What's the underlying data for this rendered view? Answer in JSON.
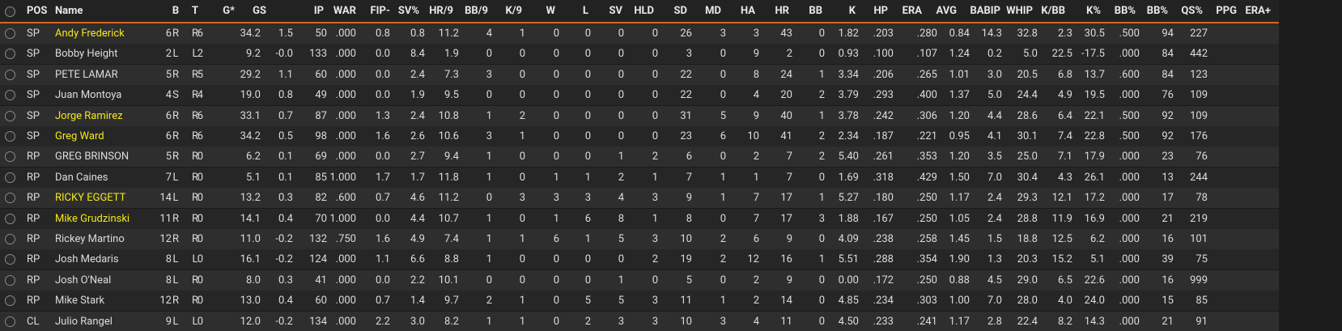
{
  "table": {
    "headers": [
      "POS",
      "Name",
      "B",
      "T",
      "G*",
      "GS",
      "IP",
      "WAR",
      "FIP-",
      "SV%",
      "HR/9",
      "BB/9",
      "K/9",
      "W",
      "L",
      "SV",
      "HLD",
      "SD",
      "MD",
      "HA",
      "HR",
      "BB",
      "K",
      "HP",
      "ERA",
      "AVG",
      "BABIP",
      "WHIP",
      "K/BB",
      "K%",
      "BB%",
      "BB%",
      "QS%",
      "PPG",
      "ERA+"
    ],
    "highlighted_rows": [
      0,
      4,
      5,
      8,
      9
    ],
    "rows": [
      [
        "SP",
        "Andy Frederick",
        "R",
        "R",
        "6",
        "6",
        "34.2",
        "1.5",
        "50",
        ".000",
        "0.8",
        "0.8",
        "11.2",
        "4",
        "1",
        "0",
        "0",
        "0",
        "0",
        "26",
        "3",
        "3",
        "43",
        "0",
        "1.82",
        ".203",
        ".280",
        "0.84",
        "14.3",
        "32.8",
        "2.3",
        "30.5",
        ".500",
        "94",
        "227"
      ],
      [
        "SP",
        "Bobby Height",
        "L",
        "L",
        "2",
        "2",
        "9.2",
        "-0.0",
        "133",
        ".000",
        "0.0",
        "8.4",
        "1.9",
        "0",
        "0",
        "0",
        "0",
        "0",
        "0",
        "3",
        "0",
        "9",
        "2",
        "0",
        "0.93",
        ".100",
        ".107",
        "1.24",
        "0.2",
        "5.0",
        "22.5",
        "-17.5",
        ".000",
        "84",
        "442"
      ],
      [
        "SP",
        "PETE LAMAR",
        "R",
        "R",
        "5",
        "5",
        "29.2",
        "1.1",
        "60",
        ".000",
        "0.0",
        "2.4",
        "7.3",
        "3",
        "0",
        "0",
        "0",
        "0",
        "0",
        "22",
        "0",
        "8",
        "24",
        "1",
        "3.34",
        ".206",
        ".265",
        "1.01",
        "3.0",
        "20.5",
        "6.8",
        "13.7",
        ".600",
        "84",
        "123"
      ],
      [
        "SP",
        "Juan Montoya",
        "S",
        "R",
        "4",
        "4",
        "19.0",
        "0.8",
        "49",
        ".000",
        "0.0",
        "1.9",
        "9.5",
        "0",
        "0",
        "0",
        "0",
        "0",
        "0",
        "22",
        "0",
        "4",
        "20",
        "2",
        "3.79",
        ".293",
        ".400",
        "1.37",
        "5.0",
        "24.4",
        "4.9",
        "19.5",
        ".000",
        "76",
        "109"
      ],
      [
        "SP",
        "Jorge Ramirez",
        "R",
        "R",
        "6",
        "6",
        "33.1",
        "0.7",
        "87",
        ".000",
        "1.3",
        "2.4",
        "10.8",
        "1",
        "2",
        "0",
        "0",
        "0",
        "0",
        "31",
        "5",
        "9",
        "40",
        "1",
        "3.78",
        ".242",
        ".306",
        "1.20",
        "4.4",
        "28.6",
        "6.4",
        "22.1",
        ".500",
        "92",
        "109"
      ],
      [
        "SP",
        "Greg Ward",
        "R",
        "R",
        "6",
        "6",
        "34.2",
        "0.5",
        "98",
        ".000",
        "1.6",
        "2.6",
        "10.6",
        "3",
        "1",
        "0",
        "0",
        "0",
        "0",
        "23",
        "6",
        "10",
        "41",
        "2",
        "2.34",
        ".187",
        ".221",
        "0.95",
        "4.1",
        "30.1",
        "7.4",
        "22.8",
        ".500",
        "92",
        "176"
      ],
      [
        "RP",
        "GREG BRINSON",
        "R",
        "R",
        "5",
        "0",
        "6.2",
        "0.1",
        "69",
        ".000",
        "0.0",
        "2.7",
        "9.4",
        "1",
        "0",
        "0",
        "0",
        "1",
        "2",
        "6",
        "0",
        "2",
        "7",
        "2",
        "5.40",
        ".261",
        ".353",
        "1.20",
        "3.5",
        "25.0",
        "7.1",
        "17.9",
        ".000",
        "23",
        "76"
      ],
      [
        "RP",
        "Dan Caines",
        "L",
        "R",
        "7",
        "0",
        "5.1",
        "0.1",
        "85",
        "1.000",
        "1.7",
        "1.7",
        "11.8",
        "1",
        "0",
        "1",
        "1",
        "2",
        "1",
        "7",
        "1",
        "1",
        "7",
        "0",
        "1.69",
        ".318",
        ".429",
        "1.50",
        "7.0",
        "30.4",
        "4.3",
        "26.1",
        ".000",
        "13",
        "244"
      ],
      [
        "RP",
        "RICKY EGGETT",
        "L",
        "R",
        "14",
        "0",
        "13.2",
        "0.3",
        "82",
        ".600",
        "0.7",
        "4.6",
        "11.2",
        "0",
        "3",
        "3",
        "3",
        "4",
        "3",
        "9",
        "1",
        "7",
        "17",
        "1",
        "5.27",
        ".180",
        ".250",
        "1.17",
        "2.4",
        "29.3",
        "12.1",
        "17.2",
        ".000",
        "17",
        "78"
      ],
      [
        "RP",
        "Mike Grudzinski",
        "R",
        "R",
        "11",
        "0",
        "14.1",
        "0.4",
        "70",
        "1.000",
        "0.0",
        "4.4",
        "10.7",
        "1",
        "0",
        "1",
        "6",
        "8",
        "1",
        "8",
        "0",
        "7",
        "17",
        "3",
        "1.88",
        ".167",
        ".250",
        "1.05",
        "2.4",
        "28.8",
        "11.9",
        "16.9",
        ".000",
        "21",
        "219"
      ],
      [
        "RP",
        "Rickey Martino",
        "R",
        "R",
        "12",
        "0",
        "11.0",
        "-0.2",
        "132",
        ".750",
        "1.6",
        "4.9",
        "7.4",
        "1",
        "1",
        "6",
        "1",
        "5",
        "3",
        "10",
        "2",
        "6",
        "9",
        "0",
        "4.09",
        ".238",
        ".258",
        "1.45",
        "1.5",
        "18.8",
        "12.5",
        "6.2",
        ".000",
        "16",
        "101"
      ],
      [
        "RP",
        "Josh Medaris",
        "L",
        "L",
        "8",
        "0",
        "16.1",
        "-0.2",
        "124",
        ".000",
        "1.1",
        "6.6",
        "8.8",
        "1",
        "0",
        "0",
        "0",
        "0",
        "2",
        "19",
        "2",
        "12",
        "16",
        "1",
        "5.51",
        ".288",
        ".354",
        "1.90",
        "1.3",
        "20.3",
        "15.2",
        "5.1",
        ".000",
        "39",
        "75"
      ],
      [
        "RP",
        "Josh O'Neal",
        "L",
        "R",
        "8",
        "0",
        "8.0",
        "0.3",
        "41",
        ".000",
        "0.0",
        "2.2",
        "10.1",
        "0",
        "0",
        "0",
        "0",
        "1",
        "0",
        "5",
        "0",
        "2",
        "9",
        "0",
        "0.00",
        ".172",
        ".250",
        "0.88",
        "4.5",
        "29.0",
        "6.5",
        "22.6",
        ".000",
        "16",
        "999"
      ],
      [
        "RP",
        "Mike Stark",
        "R",
        "R",
        "12",
        "0",
        "13.0",
        "0.4",
        "60",
        ".000",
        "0.7",
        "1.4",
        "9.7",
        "2",
        "1",
        "0",
        "5",
        "5",
        "3",
        "11",
        "1",
        "2",
        "14",
        "0",
        "4.85",
        ".234",
        ".303",
        "1.00",
        "7.0",
        "28.0",
        "4.0",
        "24.0",
        ".000",
        "15",
        "85"
      ],
      [
        "CL",
        "Julio Rangel",
        "L",
        "L",
        "9",
        "0",
        "12.0",
        "-0.2",
        "134",
        ".000",
        "2.2",
        "3.0",
        "8.2",
        "1",
        "1",
        "0",
        "2",
        "3",
        "3",
        "10",
        "3",
        "4",
        "11",
        "0",
        "4.50",
        ".233",
        ".241",
        "1.17",
        "2.8",
        "22.4",
        "8.2",
        "14.3",
        ".000",
        "21",
        "91"
      ]
    ]
  }
}
